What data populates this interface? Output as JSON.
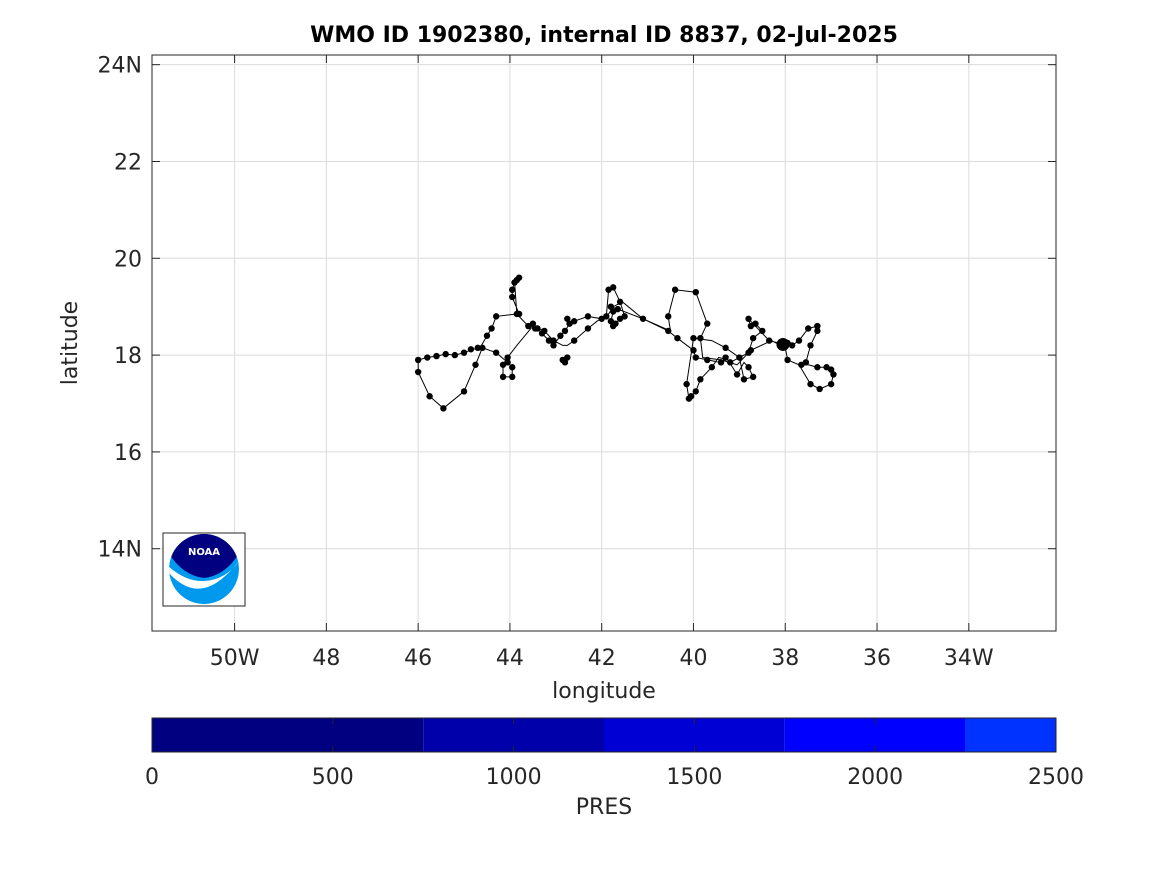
{
  "chart_data": {
    "type": "scatter",
    "title": "WMO ID 1902380, internal ID 8837, 02-Jul-2025",
    "xlabel": "longitude",
    "ylabel": "latitude",
    "xlim": [
      -51.8,
      -32.1
    ],
    "ylim": [
      12.3,
      24.2
    ],
    "grid": true,
    "x_ticks": [
      {
        "value": -50,
        "label": "50W"
      },
      {
        "value": -48,
        "label": "48"
      },
      {
        "value": -46,
        "label": "46"
      },
      {
        "value": -44,
        "label": "44"
      },
      {
        "value": -42,
        "label": "42"
      },
      {
        "value": -40,
        "label": "40"
      },
      {
        "value": -38,
        "label": "38"
      },
      {
        "value": -36,
        "label": "36"
      },
      {
        "value": -34,
        "label": "34W"
      }
    ],
    "y_ticks": [
      {
        "value": 14,
        "label": "14N"
      },
      {
        "value": 16,
        "label": "16"
      },
      {
        "value": 18,
        "label": "18"
      },
      {
        "value": 20,
        "label": "20"
      },
      {
        "value": 22,
        "label": "22"
      },
      {
        "value": 24,
        "label": "24N"
      }
    ],
    "track": [
      [
        -46.0,
        17.65
      ],
      [
        -46.0,
        17.9
      ],
      [
        -45.8,
        17.95
      ],
      [
        -45.6,
        17.98
      ],
      [
        -45.4,
        18.02
      ],
      [
        -45.2,
        18.0
      ],
      [
        -45.0,
        18.05
      ],
      [
        -44.8,
        18.12
      ],
      [
        -44.65,
        18.15
      ],
      [
        -44.5,
        18.4
      ],
      [
        -44.4,
        18.55
      ],
      [
        -44.3,
        18.8
      ],
      [
        -43.85,
        18.85
      ],
      [
        -43.8,
        18.85
      ],
      [
        -43.95,
        19.2
      ],
      [
        -43.95,
        19.35
      ],
      [
        -43.9,
        19.5
      ],
      [
        -43.85,
        19.55
      ],
      [
        -43.8,
        19.6
      ],
      [
        -43.9,
        19.55
      ],
      [
        -43.85,
        18.85
      ],
      [
        -43.6,
        18.6
      ],
      [
        -43.45,
        18.55
      ],
      [
        -43.4,
        18.55
      ],
      [
        -43.15,
        18.3
      ],
      [
        -43.05,
        18.2
      ],
      [
        -42.9,
        18.4
      ],
      [
        -42.8,
        18.5
      ],
      [
        -42.7,
        18.65
      ],
      [
        -42.6,
        18.7
      ],
      [
        -42.3,
        18.8
      ],
      [
        -42.0,
        18.75
      ],
      [
        -41.9,
        18.8
      ],
      [
        -41.85,
        19.35
      ],
      [
        -41.75,
        19.4
      ],
      [
        -41.6,
        19.1
      ],
      [
        -41.5,
        18.8
      ],
      [
        -41.6,
        18.75
      ],
      [
        -41.7,
        18.65
      ],
      [
        -41.75,
        18.6
      ],
      [
        -41.8,
        18.7
      ],
      [
        -41.75,
        18.9
      ],
      [
        -41.8,
        19.0
      ],
      [
        -41.65,
        18.95
      ],
      [
        -41.1,
        18.75
      ],
      [
        -40.55,
        18.5
      ],
      [
        -40.35,
        18.35
      ],
      [
        -40.0,
        18.1
      ],
      [
        -39.95,
        17.95
      ],
      [
        -39.7,
        17.9
      ],
      [
        -39.4,
        17.85
      ],
      [
        -39.3,
        17.95
      ],
      [
        -39.2,
        17.85
      ],
      [
        -39.0,
        17.95
      ],
      [
        -38.9,
        17.5
      ],
      [
        -38.7,
        17.55
      ],
      [
        -38.8,
        17.75
      ],
      [
        -38.9,
        17.85
      ],
      [
        -39.05,
        17.6
      ],
      [
        -39.25,
        17.9
      ],
      [
        -39.45,
        17.95
      ],
      [
        -39.6,
        17.75
      ],
      [
        -39.85,
        17.5
      ],
      [
        -39.95,
        17.25
      ],
      [
        -40.05,
        17.15
      ],
      [
        -40.1,
        17.1
      ],
      [
        -40.15,
        17.4
      ],
      [
        -40.0,
        18.35
      ],
      [
        -39.6,
        18.3
      ],
      [
        -39.3,
        18.15
      ],
      [
        -39.0,
        17.95
      ],
      [
        -38.8,
        18.05
      ],
      [
        -38.7,
        18.35
      ],
      [
        -38.5,
        18.5
      ],
      [
        -38.65,
        18.65
      ],
      [
        -38.75,
        18.6
      ],
      [
        -38.8,
        18.75
      ],
      [
        -38.35,
        18.3
      ],
      [
        -38.15,
        18.25
      ],
      [
        -38.05,
        18.2
      ],
      [
        -37.95,
        18.25
      ],
      [
        -37.85,
        18.2
      ],
      [
        -37.7,
        18.3
      ],
      [
        -37.5,
        18.55
      ],
      [
        -37.3,
        18.6
      ],
      [
        -37.3,
        18.5
      ],
      [
        -37.45,
        18.2
      ],
      [
        -37.55,
        17.85
      ],
      [
        -37.7,
        17.8
      ],
      [
        -37.5,
        17.8
      ],
      [
        -37.3,
        17.75
      ],
      [
        -37.1,
        17.75
      ],
      [
        -37.0,
        17.7
      ],
      [
        -36.95,
        17.6
      ],
      [
        -37.0,
        17.4
      ],
      [
        -37.25,
        17.3
      ],
      [
        -37.45,
        17.4
      ],
      [
        -37.7,
        17.8
      ],
      [
        -37.95,
        17.9
      ],
      [
        -38.0,
        18.15
      ],
      [
        -38.1,
        18.2
      ],
      [
        -38.3,
        18.3
      ],
      [
        -38.75,
        18.1
      ],
      [
        -39.05,
        17.8
      ],
      [
        -39.4,
        17.9
      ],
      [
        -39.8,
        17.95
      ],
      [
        -39.85,
        18.35
      ],
      [
        -39.7,
        18.65
      ],
      [
        -39.95,
        19.3
      ],
      [
        -40.4,
        19.35
      ],
      [
        -40.55,
        18.8
      ],
      [
        -40.5,
        18.5
      ],
      [
        -41.1,
        18.75
      ],
      [
        -41.55,
        19.1
      ],
      [
        -41.75,
        19.0
      ],
      [
        -41.85,
        18.85
      ],
      [
        -42.1,
        18.7
      ],
      [
        -42.3,
        18.55
      ],
      [
        -42.6,
        18.3
      ],
      [
        -42.75,
        18.2
      ],
      [
        -42.85,
        18.2
      ],
      [
        -43.05,
        18.3
      ],
      [
        -43.25,
        18.5
      ],
      [
        -43.5,
        18.6
      ],
      [
        -43.85,
        18.2
      ],
      [
        -44.05,
        17.95
      ],
      [
        -44.15,
        17.8
      ],
      [
        -44.15,
        17.55
      ],
      [
        -43.95,
        17.55
      ],
      [
        -43.95,
        17.75
      ],
      [
        -44.05,
        17.85
      ],
      [
        -44.3,
        18.05
      ],
      [
        -44.6,
        18.15
      ],
      [
        -44.75,
        17.8
      ],
      [
        -45.0,
        17.25
      ],
      [
        -45.45,
        16.9
      ],
      [
        -45.75,
        17.15
      ],
      [
        -46.0,
        17.65
      ]
    ],
    "track_markers": [
      [
        -46.0,
        17.65
      ],
      [
        -46.0,
        17.9
      ],
      [
        -45.8,
        17.95
      ],
      [
        -45.6,
        17.98
      ],
      [
        -45.4,
        18.02
      ],
      [
        -45.2,
        18.0
      ],
      [
        -45.0,
        18.05
      ],
      [
        -44.85,
        18.12
      ],
      [
        -44.7,
        18.15
      ],
      [
        -44.5,
        18.4
      ],
      [
        -44.4,
        18.55
      ],
      [
        -44.3,
        18.8
      ],
      [
        -43.85,
        18.85
      ],
      [
        -43.8,
        18.85
      ],
      [
        -43.95,
        19.2
      ],
      [
        -43.95,
        19.35
      ],
      [
        -43.9,
        19.5
      ],
      [
        -43.85,
        19.55
      ],
      [
        -43.8,
        19.6
      ],
      [
        -43.6,
        18.6
      ],
      [
        -43.45,
        18.55
      ],
      [
        -43.4,
        18.55
      ],
      [
        -43.3,
        18.45
      ],
      [
        -43.15,
        18.3
      ],
      [
        -43.05,
        18.2
      ],
      [
        -42.9,
        18.4
      ],
      [
        -42.8,
        18.5
      ],
      [
        -42.7,
        18.65
      ],
      [
        -42.6,
        18.7
      ],
      [
        -42.75,
        18.75
      ],
      [
        -42.3,
        18.8
      ],
      [
        -42.0,
        18.75
      ],
      [
        -41.9,
        18.8
      ],
      [
        -41.85,
        19.35
      ],
      [
        -41.75,
        19.4
      ],
      [
        -41.6,
        19.1
      ],
      [
        -41.5,
        18.8
      ],
      [
        -41.6,
        18.75
      ],
      [
        -41.7,
        18.65
      ],
      [
        -41.75,
        18.6
      ],
      [
        -41.8,
        18.7
      ],
      [
        -41.75,
        18.9
      ],
      [
        -41.8,
        19.0
      ],
      [
        -41.65,
        18.95
      ],
      [
        -41.1,
        18.75
      ],
      [
        -40.55,
        18.5
      ],
      [
        -40.35,
        18.35
      ],
      [
        -40.0,
        18.1
      ],
      [
        -39.95,
        17.95
      ],
      [
        -39.7,
        17.9
      ],
      [
        -39.4,
        17.85
      ],
      [
        -39.3,
        17.95
      ],
      [
        -39.2,
        17.85
      ],
      [
        -39.0,
        17.95
      ],
      [
        -38.9,
        17.5
      ],
      [
        -38.7,
        17.55
      ],
      [
        -38.8,
        17.75
      ],
      [
        -39.05,
        17.6
      ],
      [
        -39.6,
        17.75
      ],
      [
        -39.85,
        17.5
      ],
      [
        -39.95,
        17.25
      ],
      [
        -40.05,
        17.15
      ],
      [
        -40.1,
        17.1
      ],
      [
        -40.15,
        17.4
      ],
      [
        -40.0,
        18.35
      ],
      [
        -39.3,
        18.15
      ],
      [
        -38.8,
        18.05
      ],
      [
        -38.7,
        18.35
      ],
      [
        -38.5,
        18.5
      ],
      [
        -38.65,
        18.65
      ],
      [
        -38.75,
        18.6
      ],
      [
        -38.8,
        18.75
      ],
      [
        -38.35,
        18.3
      ],
      [
        -38.05,
        18.2
      ],
      [
        -37.95,
        18.25
      ],
      [
        -37.85,
        18.2
      ],
      [
        -37.7,
        18.3
      ],
      [
        -37.5,
        18.55
      ],
      [
        -37.3,
        18.6
      ],
      [
        -37.3,
        18.5
      ],
      [
        -37.45,
        18.2
      ],
      [
        -37.55,
        17.85
      ],
      [
        -37.65,
        17.8
      ],
      [
        -37.3,
        17.75
      ],
      [
        -37.1,
        17.75
      ],
      [
        -37.0,
        17.7
      ],
      [
        -36.95,
        17.6
      ],
      [
        -37.0,
        17.4
      ],
      [
        -37.25,
        17.3
      ],
      [
        -37.45,
        17.4
      ],
      [
        -37.95,
        17.9
      ],
      [
        -38.1,
        18.2
      ],
      [
        -38.75,
        18.1
      ],
      [
        -39.85,
        18.35
      ],
      [
        -39.7,
        18.65
      ],
      [
        -39.95,
        19.3
      ],
      [
        -40.4,
        19.35
      ],
      [
        -40.55,
        18.8
      ],
      [
        -42.3,
        18.55
      ],
      [
        -42.6,
        18.3
      ],
      [
        -42.75,
        17.95
      ],
      [
        -42.8,
        17.85
      ],
      [
        -42.85,
        17.9
      ],
      [
        -43.05,
        18.3
      ],
      [
        -43.25,
        18.5
      ],
      [
        -43.5,
        18.65
      ],
      [
        -44.05,
        17.95
      ],
      [
        -44.15,
        17.8
      ],
      [
        -44.15,
        17.55
      ],
      [
        -43.95,
        17.55
      ],
      [
        -43.95,
        17.75
      ],
      [
        -44.05,
        17.85
      ],
      [
        -44.3,
        18.05
      ],
      [
        -44.6,
        18.15
      ],
      [
        -44.75,
        17.8
      ],
      [
        -45.0,
        17.25
      ],
      [
        -45.45,
        16.9
      ],
      [
        -45.75,
        17.15
      ]
    ],
    "latest_position": [
      -38.05,
      18.22
    ],
    "marker_color": "#000000"
  },
  "colorbar": {
    "label": "PRES",
    "ticks": [
      {
        "value": 0,
        "label": "0"
      },
      {
        "value": 500,
        "label": "500"
      },
      {
        "value": 1000,
        "label": "1000"
      },
      {
        "value": 1500,
        "label": "1500"
      },
      {
        "value": 2000,
        "label": "2000"
      },
      {
        "value": 2500,
        "label": "2500"
      }
    ],
    "range": [
      0,
      2500
    ],
    "segments": [
      {
        "from": 0,
        "to": 750,
        "color": "#000080"
      },
      {
        "from": 750,
        "to": 1250,
        "color": "#0000AA"
      },
      {
        "from": 1250,
        "to": 1750,
        "color": "#0000D5"
      },
      {
        "from": 1750,
        "to": 2250,
        "color": "#0000FF"
      },
      {
        "from": 2250,
        "to": 2500,
        "color": "#0033FF"
      }
    ]
  },
  "logo": {
    "name": "noaa-logo",
    "text": "NOAA",
    "colors": {
      "dark": "#000080",
      "light": "#0099EE"
    }
  }
}
